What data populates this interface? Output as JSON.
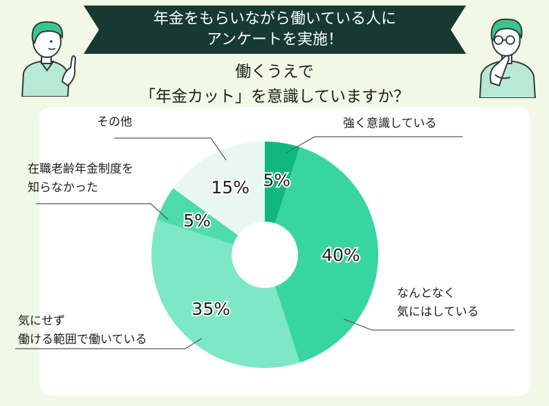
{
  "header": {
    "banner_line1": "年金をもらいながら働いている人に",
    "banner_line2": "アンケートを実施！",
    "question_line1": "働くうえで",
    "question_line2": "「年金カット」を意識していますか？"
  },
  "chart_data": {
    "type": "pie",
    "title": "",
    "categories": [
      "強く意識している",
      "なんとなく気にはしている",
      "気にせず働ける範囲で働いている",
      "在職老齢年金制度を知らなかった",
      "その他"
    ],
    "values": [
      5,
      40,
      35,
      5,
      15
    ],
    "value_labels": [
      "5%",
      "40%",
      "35%",
      "5%",
      "15%"
    ],
    "colors": [
      "#10b880",
      "#38d5a1",
      "#7ce8c6",
      "#4edcab",
      "#e9f7f3"
    ],
    "label_lines": [
      [
        "強く意識している"
      ],
      [
        "なんとなく",
        "気にはしている"
      ],
      [
        "気にせず",
        "働ける範囲で働いている"
      ],
      [
        "在職老齢年金制度を",
        "知らなかった"
      ],
      [
        "その他"
      ]
    ]
  },
  "colors": {
    "background": "#f1f9e6",
    "banner": "#163a31",
    "card": "#ffffff"
  }
}
